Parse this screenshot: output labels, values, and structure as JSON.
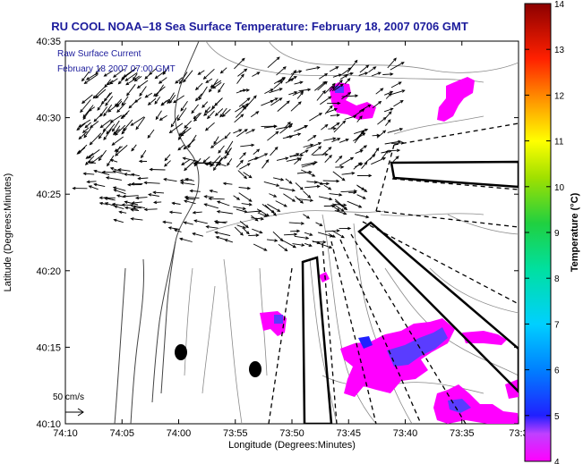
{
  "title": "RU COOL  NOAA–18  Sea Surface Temperature:  February 18, 2007 0706 GMT",
  "overlay": {
    "line1": "Raw Surface Current",
    "line2": "February 18 2007 07:00 GMT"
  },
  "axes": {
    "xlabel": "Longitude (Degrees:Minutes)",
    "ylabel": "Latitude (Degrees:Minutes)",
    "xticks": [
      "74:10",
      "74:05",
      "74:00",
      "73:55",
      "73:50",
      "73:45",
      "73:40",
      "73:35",
      "73:3"
    ],
    "yticks": [
      "40:35",
      "40:30",
      "40:25",
      "40:20",
      "40:15",
      "40:10"
    ]
  },
  "scale_label": "50 cm/s",
  "colorbar": {
    "label": "Temperature (°C)",
    "ticks": [
      "14",
      "13",
      "12",
      "11",
      "10",
      "9",
      "8",
      "7",
      "6",
      "5",
      "4"
    ]
  },
  "colors": {
    "title": "#1c1c9c",
    "sst_patch": "#ff00ff",
    "sst_cold": "#5a3cff"
  }
}
